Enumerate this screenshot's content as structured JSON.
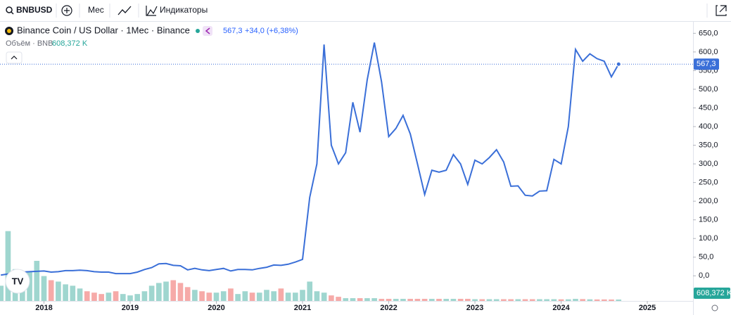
{
  "toolbar": {
    "symbol": "BNBUSD",
    "interval": "Мес",
    "indicators": "Индикаторы"
  },
  "legend": {
    "title": "Binance Coin / US Dollar · 1Мес · Binance",
    "last": "567,3",
    "change": "+34,0 (+6,38%)",
    "volume_title": "Объём · BNB",
    "volume_last": "608,372 K"
  },
  "chart_data": {
    "type": "line",
    "x": [
      "2017-07",
      "2017-08",
      "2017-09",
      "2017-10",
      "2017-11",
      "2017-12",
      "2018-01",
      "2018-02",
      "2018-03",
      "2018-04",
      "2018-05",
      "2018-06",
      "2018-07",
      "2018-08",
      "2018-09",
      "2018-10",
      "2018-11",
      "2018-12",
      "2019-01",
      "2019-02",
      "2019-03",
      "2019-04",
      "2019-05",
      "2019-06",
      "2019-07",
      "2019-08",
      "2019-09",
      "2019-10",
      "2019-11",
      "2019-12",
      "2020-01",
      "2020-02",
      "2020-03",
      "2020-04",
      "2020-05",
      "2020-06",
      "2020-07",
      "2020-08",
      "2020-09",
      "2020-10",
      "2020-11",
      "2020-12",
      "2021-01",
      "2021-02",
      "2021-03",
      "2021-04",
      "2021-05",
      "2021-06",
      "2021-07",
      "2021-08",
      "2021-09",
      "2021-10",
      "2021-11",
      "2021-12",
      "2022-01",
      "2022-02",
      "2022-03",
      "2022-04",
      "2022-05",
      "2022-06",
      "2022-07",
      "2022-08",
      "2022-09",
      "2022-10",
      "2022-11",
      "2022-12",
      "2023-01",
      "2023-02",
      "2023-03",
      "2023-04",
      "2023-05",
      "2023-06",
      "2023-07",
      "2023-08",
      "2023-09",
      "2023-10",
      "2023-11",
      "2023-12",
      "2024-01",
      "2024-02",
      "2024-03",
      "2024-04",
      "2024-05",
      "2024-06",
      "2024-07",
      "2024-08",
      "2024-09"
    ],
    "series": [
      {
        "name": "BNBUSD",
        "color": "#3a6fd8",
        "values": [
          2,
          5,
          8,
          10,
          11,
          12,
          13,
          10,
          11,
          14,
          14,
          15,
          14,
          11,
          10,
          10,
          6,
          6,
          6,
          10,
          17,
          22,
          32,
          33,
          28,
          27,
          16,
          20,
          16,
          14,
          17,
          20,
          13,
          17,
          17,
          16,
          20,
          23,
          29,
          28,
          31,
          37,
          44,
          210,
          300,
          620,
          350,
          300,
          330,
          465,
          385,
          525,
          625,
          520,
          373,
          395,
          430,
          380,
          300,
          218,
          283,
          278,
          283,
          325,
          300,
          245,
          310,
          300,
          317,
          338,
          305,
          240,
          241,
          216,
          214,
          227,
          228,
          312,
          300,
          400,
          607,
          575,
          595,
          582,
          575,
          533.3,
          567.3
        ]
      },
      {
        "name": "Объём",
        "axis": "volume",
        "up_color": "#9fd6cf",
        "down_color": "#f6aaa8",
        "values": [
          6600,
          30300,
          13800,
          9000,
          12900,
          17400,
          10800,
          9000,
          8400,
          7200,
          6600,
          5400,
          4200,
          3600,
          3000,
          3600,
          4200,
          3000,
          2400,
          3000,
          4200,
          6600,
          7800,
          8400,
          9000,
          7800,
          6000,
          4800,
          4200,
          3600,
          3600,
          4200,
          5400,
          3000,
          4200,
          3600,
          3600,
          4800,
          4200,
          5400,
          3600,
          3600,
          4800,
          8400,
          4200,
          3600,
          2400,
          1800,
          1200,
          1200,
          1200,
          1200,
          1200,
          900,
          900,
          900,
          900,
          900,
          900,
          900,
          900,
          900,
          900,
          900,
          900,
          900,
          750,
          750,
          750,
          750,
          750,
          750,
          750,
          750,
          750,
          750,
          750,
          750,
          700,
          700,
          900,
          800,
          700,
          650,
          650,
          620,
          608.372
        ]
      }
    ],
    "xlim": [
      2017.49,
      2025.53
    ],
    "xticks": [
      2018,
      2019,
      2020,
      2021,
      2022,
      2023,
      2024,
      2025
    ],
    "ylim": [
      -67.3,
      680.8
    ],
    "yticks": [
      {
        "value": 0,
        "label": "0,0"
      },
      {
        "value": 50,
        "label": "50,0"
      },
      {
        "value": 100,
        "label": "100,0"
      },
      {
        "value": 150,
        "label": "150,0"
      },
      {
        "value": 200,
        "label": "200,0"
      },
      {
        "value": 250,
        "label": "250,0"
      },
      {
        "value": 300,
        "label": "300,0"
      },
      {
        "value": 350,
        "label": "350,0"
      },
      {
        "value": 400,
        "label": "400,0"
      },
      {
        "value": 450,
        "label": "450,0"
      },
      {
        "value": 500,
        "label": "500,0"
      },
      {
        "value": 550,
        "label": "550,0"
      },
      {
        "value": 600,
        "label": "600,0"
      },
      {
        "value": 650,
        "label": "650,0"
      }
    ],
    "volume_lim": [
      0,
      36000
    ],
    "grid": false
  }
}
